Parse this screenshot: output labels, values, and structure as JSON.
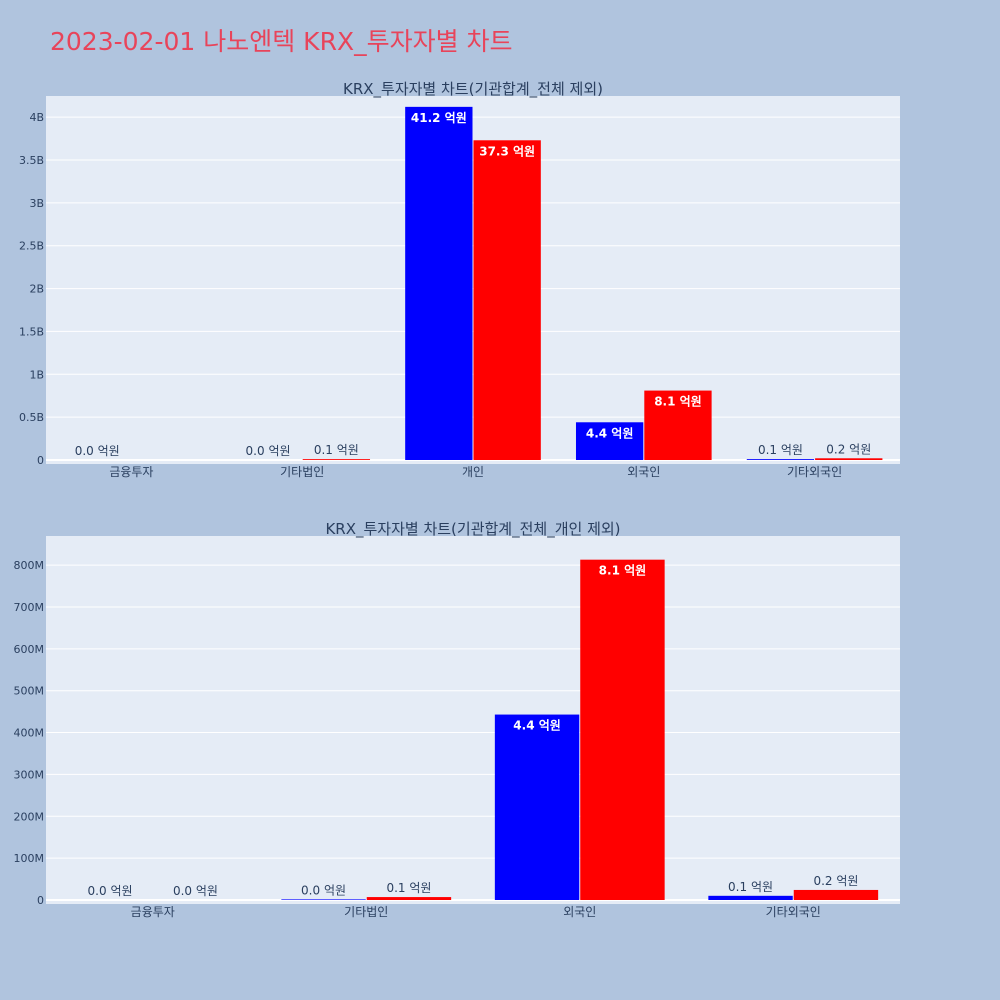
{
  "page_title": "2023-02-01 나노엔텍 KRX_투자자별 차트",
  "colors": {
    "buy": "#0000ff",
    "sell": "#ff0000",
    "plot_bg": "#e5ecf6",
    "page_bg": "#b0c4de",
    "title": "#e8445a"
  },
  "chart_data": [
    {
      "type": "bar",
      "title": "KRX_투자자별 차트(기관합계_전체 제외)",
      "categories": [
        "금융투자",
        "기타법인",
        "개인",
        "외국인",
        "기타외국인"
      ],
      "ylim": [
        0,
        4.2
      ],
      "yunit": "B",
      "yticks": [
        "0",
        "0.5B",
        "1B",
        "1.5B",
        "2B",
        "2.5B",
        "3B",
        "3.5B",
        "4B"
      ],
      "ytick_values": [
        0,
        0.5,
        1,
        1.5,
        2,
        2.5,
        3,
        3.5,
        4
      ],
      "grid": true,
      "series": [
        {
          "color": "#0000ff",
          "values": [
            0.0,
            0.0,
            4.12,
            0.44,
            0.01
          ],
          "labels": [
            "0.0 억원",
            "0.0 억원",
            "41.2 억원",
            "4.4 억원",
            "0.1 억원"
          ]
        },
        {
          "color": "#ff0000",
          "values": [
            0.0,
            0.01,
            3.73,
            0.81,
            0.02
          ],
          "labels": [
            "",
            "0.1 억원",
            "37.3 억원",
            "8.1 억원",
            "0.2 억원"
          ]
        }
      ]
    },
    {
      "type": "bar",
      "title": "KRX_투자자별 차트(기관합계_전체_개인 제외)",
      "categories": [
        "금융투자",
        "기타법인",
        "외국인",
        "기타외국인"
      ],
      "ylim": [
        0,
        860
      ],
      "yunit": "M",
      "yticks": [
        "0",
        "100M",
        "200M",
        "300M",
        "400M",
        "500M",
        "600M",
        "700M",
        "800M"
      ],
      "ytick_values": [
        0,
        100,
        200,
        300,
        400,
        500,
        600,
        700,
        800
      ],
      "grid": true,
      "series": [
        {
          "color": "#0000ff",
          "values": [
            0.0,
            1.5,
            443,
            10
          ],
          "labels": [
            "0.0 억원",
            "0.0 억원",
            "4.4 억원",
            "0.1 억원"
          ]
        },
        {
          "color": "#ff0000",
          "values": [
            0.0,
            7,
            813,
            24
          ],
          "labels": [
            "0.0 억원",
            "0.1 억원",
            "8.1 억원",
            "0.2 억원"
          ]
        }
      ]
    }
  ]
}
